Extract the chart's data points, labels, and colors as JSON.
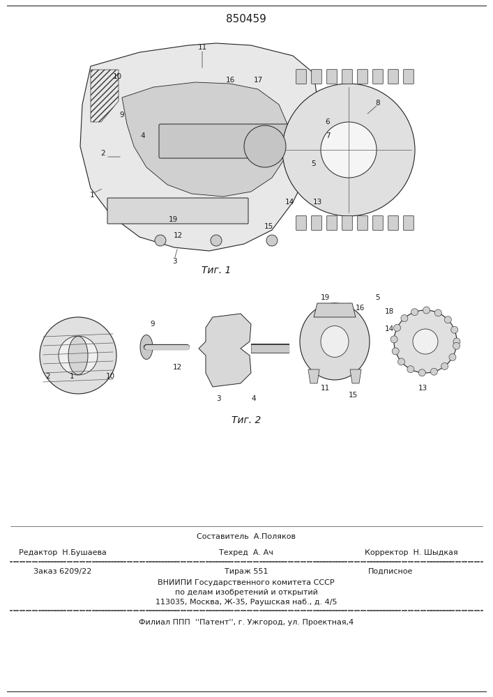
{
  "patent_number": "850459",
  "fig1_caption": "Τиг. 1",
  "fig2_caption": "Τиг. 2",
  "footer": {
    "line1_left": "Редактор  Н.Бушаева",
    "line1_center_top": "Составитель  А.Поляков",
    "line1_center": "Техред  А. Ач",
    "line1_right": "Корректор  Н. Шыдкая",
    "line2_left": "Заказ 6209/22",
    "line2_center": "Тираж 551",
    "line2_right": "Подписное",
    "line3": "ВНИИПИ Государственного комитета СССР",
    "line4": "по делам изобретений и открытий",
    "line5": "113035, Москва, Ж-35, Раушская наб., д. 4/5",
    "line6": "Филиал ППП  ''Патент'', г. Ужгород, ул. Проектная,4"
  },
  "bg_color": "#ffffff",
  "text_color": "#1a1a1a",
  "line_color": "#2a2a2a"
}
